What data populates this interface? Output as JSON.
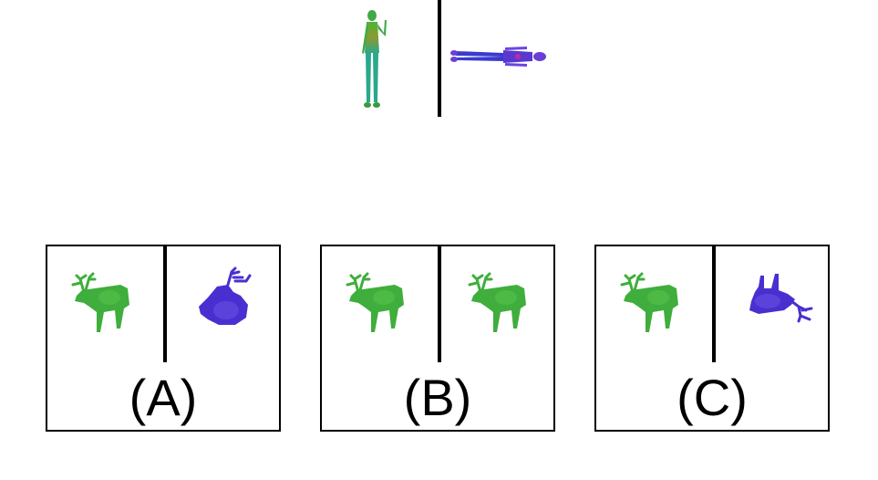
{
  "reference": {
    "left_shape": "human-figure-standing",
    "right_shape": "human-figure-lying",
    "left_color": "#3aa845",
    "right_color": "#4a33c9"
  },
  "options": [
    {
      "label": "(A)",
      "left_shape": "deer-green",
      "right_shape": "deer-blue-tilted"
    },
    {
      "label": "(B)",
      "left_shape": "deer-green",
      "right_shape": "deer-green"
    },
    {
      "label": "(C)",
      "left_shape": "deer-green",
      "right_shape": "deer-blue-upside-down"
    }
  ],
  "colors": {
    "green": "#3fae3c",
    "blue": "#4a2fd0",
    "border": "#000000"
  }
}
